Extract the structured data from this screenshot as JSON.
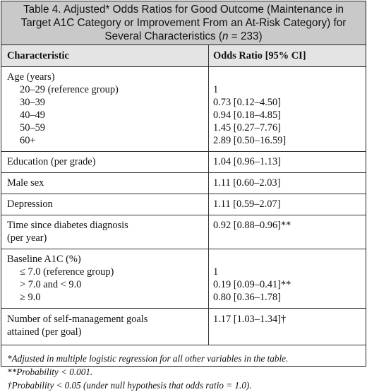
{
  "title": {
    "line1": "Table 4. Adjusted* Odds Ratios for Good Outcome (Maintenance in",
    "line2": "Target A1C Category or Improvement From an At-Risk Category) for",
    "line3_prefix": "Several Characteristics (",
    "line3_n": "n",
    "line3_suffix": " = 233)"
  },
  "header": {
    "characteristic": "Characteristic",
    "odds_ratio": "Odds Ratio [95% CI]"
  },
  "rows": [
    {
      "lines": [
        {
          "label": "Age (years)",
          "value": ""
        },
        {
          "label": "20–29 (reference group)",
          "value": "1"
        },
        {
          "label": "30–39",
          "value": "0.73 [0.12–4.50]"
        },
        {
          "label": "40–49",
          "value": "0.94 [0.18–4.85]"
        },
        {
          "label": "50–59",
          "value": "1.45 [0.27–7.76]"
        },
        {
          "label": "60+",
          "value": "2.89 [0.50–16.59]"
        }
      ]
    },
    {
      "lines": [
        {
          "label": "Education (per grade)",
          "value": "1.04 [0.96–1.13]"
        }
      ]
    },
    {
      "lines": [
        {
          "label": "Male sex",
          "value": "1.11 [0.60–2.03]"
        }
      ]
    },
    {
      "lines": [
        {
          "label": "Depression",
          "value": "1.11 [0.59–2.07]"
        }
      ]
    },
    {
      "lines": [
        {
          "label": "Time since diabetes diagnosis",
          "value": "0.92 [0.88–0.96]**"
        },
        {
          "label": "(per year)",
          "value": ""
        }
      ]
    },
    {
      "lines": [
        {
          "label": "Baseline A1C (%)",
          "value": ""
        },
        {
          "label": "≤ 7.0 (reference group)",
          "value": "1"
        },
        {
          "label": "> 7.0 and < 9.0",
          "value": "0.19 [0.09–0.41]**"
        },
        {
          "label": "≥ 9.0",
          "value": "0.80 [0.36–1.78]"
        }
      ]
    },
    {
      "lines": [
        {
          "label": "Number of self-management goals",
          "value": "1.17 [1.03–1.34]†"
        },
        {
          "label": "attained (per goal)",
          "value": ""
        }
      ]
    }
  ],
  "footnotes": [
    "*Adjusted in multiple logistic regression for all other variables in the table.",
    "**Probability < 0.001.",
    "†Probability < 0.05 (under null hypothesis that odds ratio = 1.0)."
  ]
}
